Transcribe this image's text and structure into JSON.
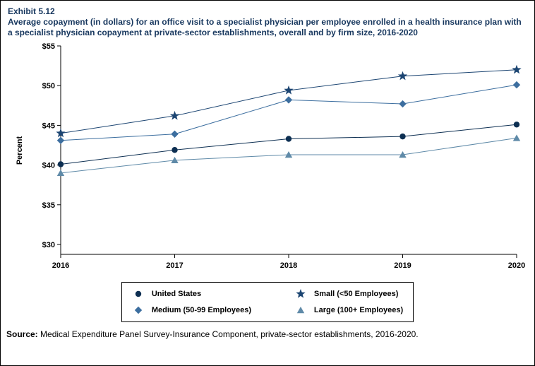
{
  "exhibit": {
    "number": "Exhibit 5.12",
    "title": "Average copayment (in dollars) for an office visit to a specialist physician per employee enrolled in a health insurance plan with a specialist physician copayment at private-sector establishments, overall and by firm size, 2016-2020"
  },
  "colors": {
    "title_text": "#17375e",
    "axis": "#000000"
  },
  "chart_data": {
    "type": "line",
    "title": "",
    "xlabel": "",
    "ylabel": "Percent",
    "x": [
      2016,
      2017,
      2018,
      2019,
      2020
    ],
    "ylim": [
      30,
      55
    ],
    "yticks": [
      30,
      35,
      40,
      45,
      50,
      55
    ],
    "ytick_prefix": "$",
    "grid": false,
    "legend_position": "bottom",
    "series": [
      {
        "name": "United States",
        "marker": "circle",
        "color": "#0d2f52",
        "values": [
          40.1,
          41.9,
          43.3,
          43.6,
          45.1
        ]
      },
      {
        "name": "Small (<50 Employees)",
        "marker": "star",
        "color": "#1c4572",
        "values": [
          44.0,
          46.2,
          49.4,
          51.2,
          52.0
        ]
      },
      {
        "name": "Medium (50-99 Employees)",
        "marker": "diamond",
        "color": "#3c6e9f",
        "values": [
          43.1,
          43.9,
          48.2,
          47.7,
          50.1
        ]
      },
      {
        "name": "Large (100+ Employees)",
        "marker": "triangle",
        "color": "#5f8aa8",
        "values": [
          39.0,
          40.6,
          41.3,
          41.3,
          43.4
        ]
      }
    ]
  },
  "source": {
    "label": "Source:",
    "text": " Medical Expenditure Panel Survey-Insurance Component, private-sector establishments, 2016-2020."
  }
}
